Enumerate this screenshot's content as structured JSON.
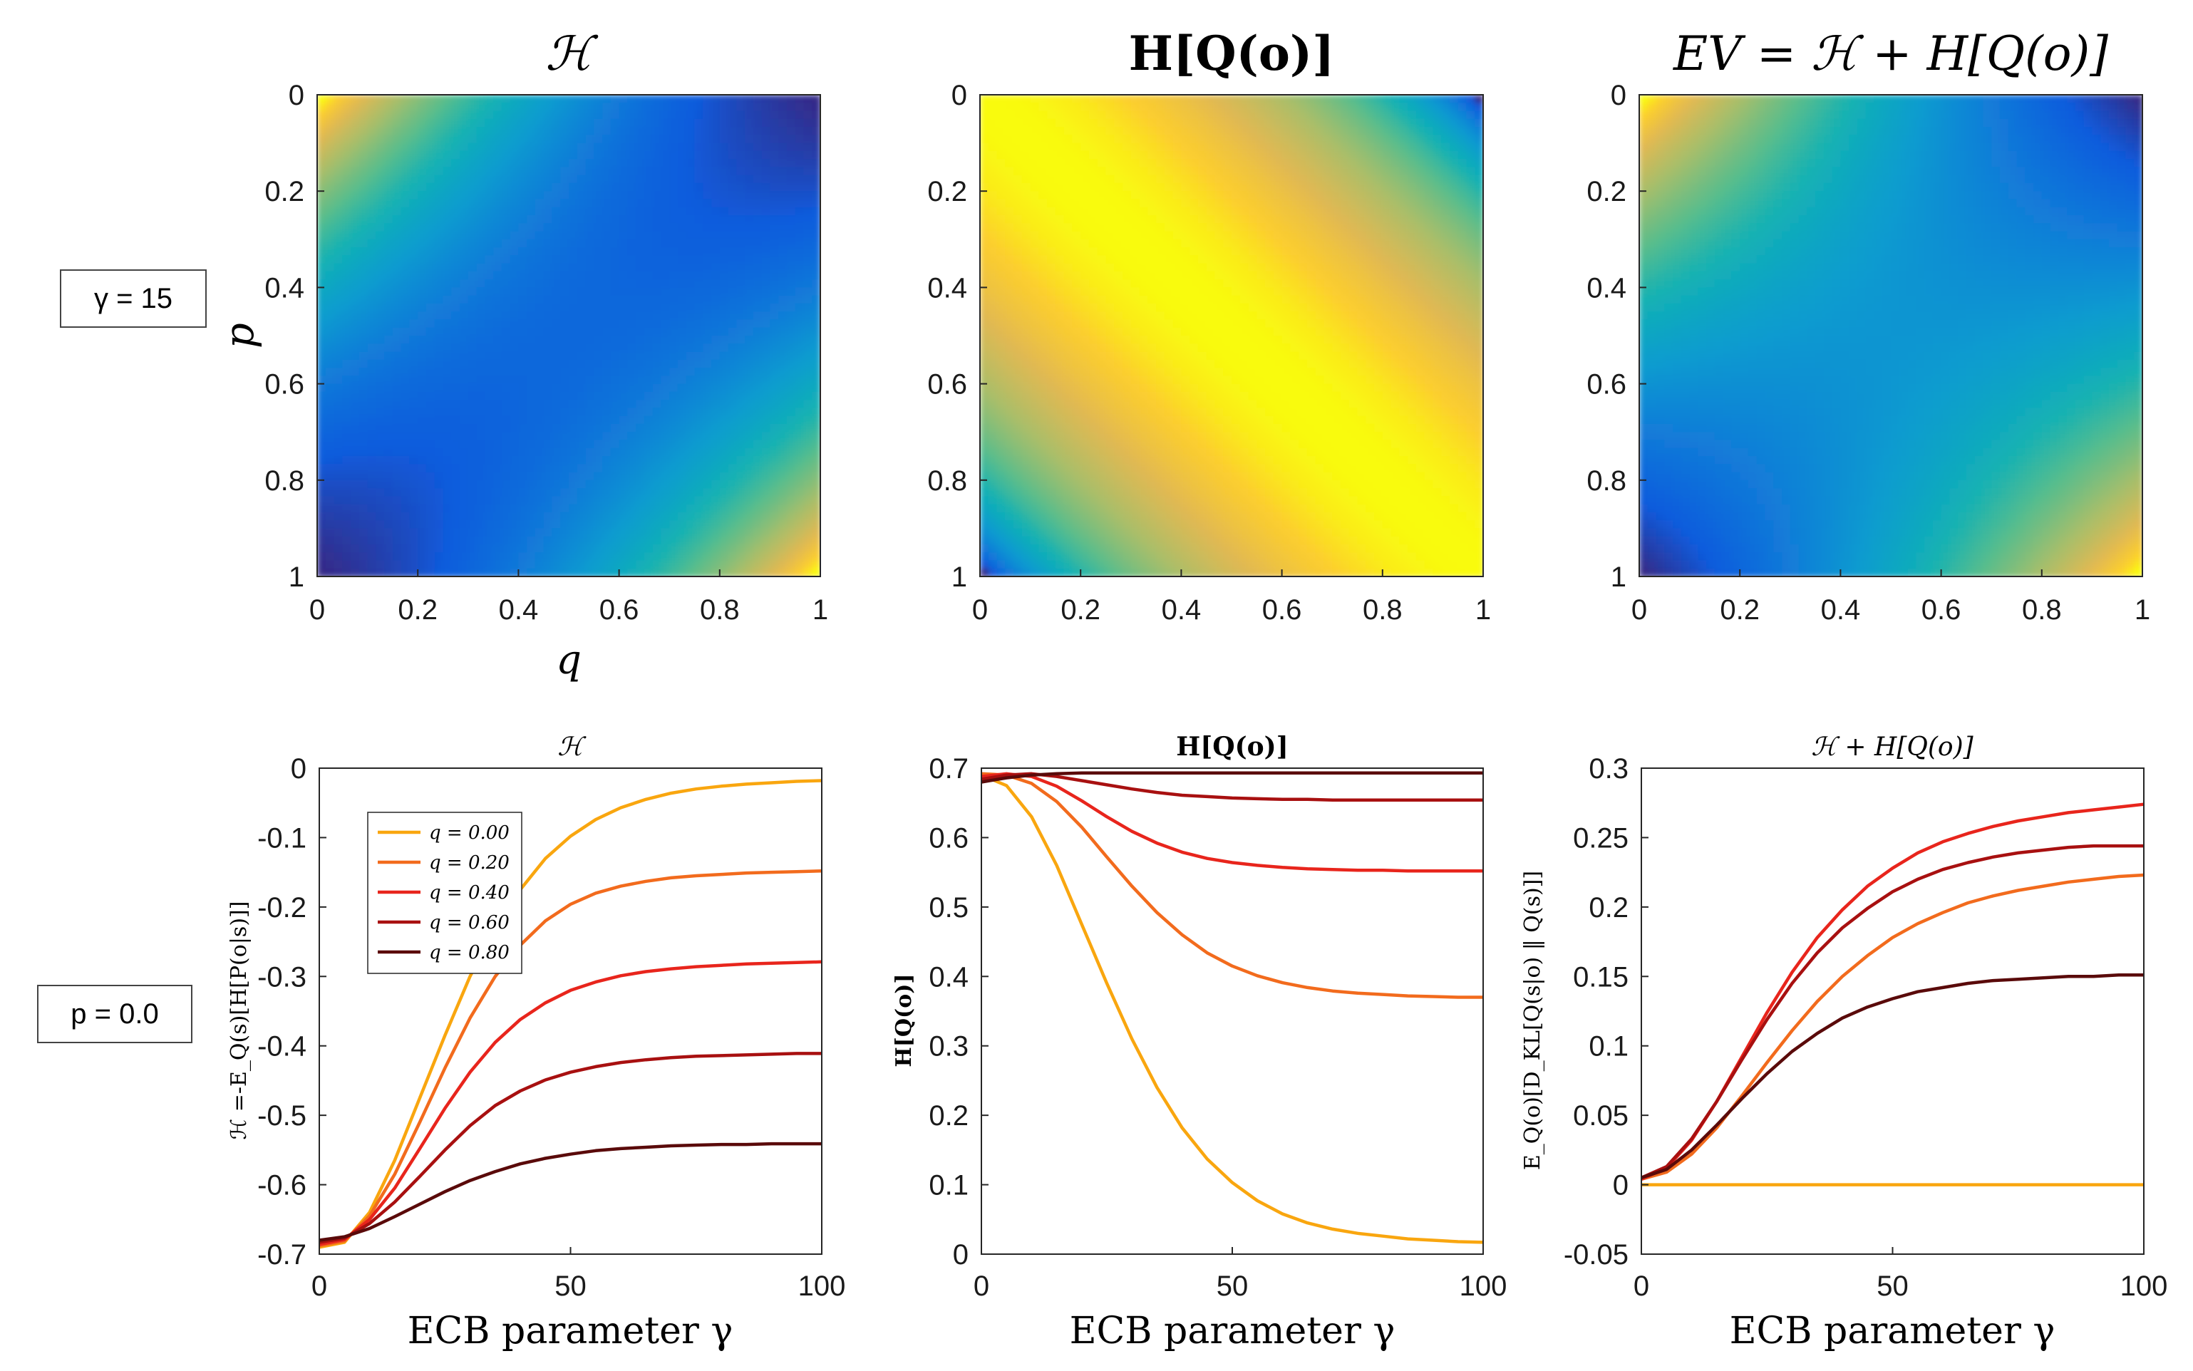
{
  "annotations": {
    "gamma_box": "γ = 15",
    "p_box": "p = 0.0"
  },
  "colors": {
    "q000": "#F9A60F",
    "q020": "#F26B1D",
    "q040": "#E8251C",
    "q060": "#A81010",
    "q080": "#5A0A0A"
  },
  "chart_data": [
    {
      "type": "heatmap",
      "title": "ℋ",
      "xlabel": "q",
      "ylabel": "p",
      "x_ticks": [
        "0",
        "0.2",
        "0.4",
        "0.6",
        "0.8",
        "1"
      ],
      "y_ticks": [
        "0",
        "0.2",
        "0.4",
        "0.6",
        "0.8",
        "1"
      ],
      "xlim": [
        0,
        1
      ],
      "ylim": [
        0,
        1
      ],
      "colormap": "parula",
      "description_values": {
        "high_corners": [
          "p=0,q=0",
          "p=1,q=1"
        ],
        "low_corners": [
          "p=0,q=1",
          "p=1,q=0"
        ]
      }
    },
    {
      "type": "heatmap",
      "title": "H[Q(o)]",
      "xlabel": "",
      "ylabel": "",
      "x_ticks": [
        "0",
        "0.2",
        "0.4",
        "0.6",
        "0.8",
        "1"
      ],
      "y_ticks": [
        "0",
        "0.2",
        "0.4",
        "0.6",
        "0.8",
        "1"
      ],
      "xlim": [
        0,
        1
      ],
      "ylim": [
        0,
        1
      ],
      "colormap": "parula"
    },
    {
      "type": "heatmap",
      "title": "EV = ℋ + H[Q(o)]",
      "xlabel": "",
      "ylabel": "",
      "x_ticks": [
        "0",
        "0.2",
        "0.4",
        "0.6",
        "0.8",
        "1"
      ],
      "y_ticks": [
        "0",
        "0.2",
        "0.4",
        "0.6",
        "0.8",
        "1"
      ],
      "xlim": [
        0,
        1
      ],
      "ylim": [
        0,
        1
      ],
      "colormap": "parula"
    },
    {
      "type": "line",
      "title": "ℋ",
      "xlabel": "ECB parameter γ",
      "ylabel": "ℋ =-E_Q(s)[H[P(o|s)]]",
      "xlim": [
        0,
        100
      ],
      "ylim": [
        -0.7,
        0
      ],
      "x_ticks": [
        "0",
        "50",
        "100"
      ],
      "y_ticks": [
        "0",
        "-0.1",
        "-0.2",
        "-0.3",
        "-0.4",
        "-0.5",
        "-0.6",
        "-0.7"
      ],
      "x": [
        0,
        5,
        10,
        15,
        20,
        25,
        30,
        35,
        40,
        45,
        50,
        55,
        60,
        65,
        70,
        75,
        80,
        85,
        90,
        95,
        100
      ],
      "legend": [
        "q = 0.00",
        "q = 0.20",
        "q = 0.40",
        "q = 0.60",
        "q = 0.80"
      ],
      "series": [
        {
          "name": "q = 0.00",
          "color_key": "q000",
          "values": [
            -0.69,
            -0.683,
            -0.64,
            -0.565,
            -0.475,
            -0.385,
            -0.3,
            -0.23,
            -0.175,
            -0.13,
            -0.098,
            -0.074,
            -0.057,
            -0.045,
            -0.036,
            -0.03,
            -0.026,
            -0.023,
            -0.021,
            -0.019,
            -0.018
          ]
        },
        {
          "name": "q = 0.20",
          "color_key": "q020",
          "values": [
            -0.688,
            -0.681,
            -0.645,
            -0.585,
            -0.51,
            -0.432,
            -0.36,
            -0.3,
            -0.255,
            -0.22,
            -0.196,
            -0.18,
            -0.17,
            -0.163,
            -0.158,
            -0.155,
            -0.153,
            -0.151,
            -0.15,
            -0.149,
            -0.148
          ]
        },
        {
          "name": "q = 0.40",
          "color_key": "q040",
          "values": [
            -0.686,
            -0.679,
            -0.65,
            -0.605,
            -0.548,
            -0.49,
            -0.438,
            -0.395,
            -0.362,
            -0.338,
            -0.32,
            -0.308,
            -0.299,
            -0.293,
            -0.289,
            -0.286,
            -0.284,
            -0.282,
            -0.281,
            -0.28,
            -0.279
          ]
        },
        {
          "name": "q = 0.60",
          "color_key": "q060",
          "values": [
            -0.683,
            -0.677,
            -0.656,
            -0.625,
            -0.588,
            -0.55,
            -0.515,
            -0.486,
            -0.465,
            -0.449,
            -0.438,
            -0.43,
            -0.424,
            -0.42,
            -0.417,
            -0.415,
            -0.414,
            -0.413,
            -0.412,
            -0.411,
            -0.411
          ]
        },
        {
          "name": "q = 0.80",
          "color_key": "q080",
          "values": [
            -0.68,
            -0.675,
            -0.663,
            -0.646,
            -0.628,
            -0.61,
            -0.594,
            -0.581,
            -0.57,
            -0.562,
            -0.556,
            -0.551,
            -0.548,
            -0.546,
            -0.544,
            -0.543,
            -0.542,
            -0.542,
            -0.541,
            -0.541,
            -0.541
          ]
        }
      ]
    },
    {
      "type": "line",
      "title": "H[Q(o)]",
      "xlabel": "ECB parameter γ",
      "ylabel": "H[Q(o)]",
      "xlim": [
        0,
        100
      ],
      "ylim": [
        0,
        0.7
      ],
      "x_ticks": [
        "0",
        "50",
        "100"
      ],
      "y_ticks": [
        "0",
        "0.1",
        "0.2",
        "0.3",
        "0.4",
        "0.5",
        "0.6",
        "0.7"
      ],
      "x": [
        0,
        5,
        10,
        15,
        20,
        25,
        30,
        35,
        40,
        45,
        50,
        55,
        60,
        65,
        70,
        75,
        80,
        85,
        90,
        95,
        100
      ],
      "series": [
        {
          "name": "q = 0.00",
          "color_key": "q000",
          "values": [
            0.69,
            0.675,
            0.63,
            0.56,
            0.475,
            0.39,
            0.31,
            0.24,
            0.182,
            0.137,
            0.103,
            0.077,
            0.058,
            0.045,
            0.036,
            0.03,
            0.026,
            0.022,
            0.02,
            0.018,
            0.017
          ]
        },
        {
          "name": "q = 0.20",
          "color_key": "q020",
          "values": [
            0.692,
            0.69,
            0.678,
            0.652,
            0.615,
            0.572,
            0.53,
            0.492,
            0.46,
            0.434,
            0.415,
            0.401,
            0.391,
            0.384,
            0.379,
            0.376,
            0.374,
            0.372,
            0.371,
            0.37,
            0.37
          ]
        },
        {
          "name": "q = 0.40",
          "color_key": "q040",
          "values": [
            0.688,
            0.692,
            0.688,
            0.674,
            0.653,
            0.63,
            0.609,
            0.592,
            0.579,
            0.57,
            0.564,
            0.56,
            0.557,
            0.555,
            0.554,
            0.553,
            0.553,
            0.552,
            0.552,
            0.552,
            0.552
          ]
        },
        {
          "name": "q = 0.60",
          "color_key": "q060",
          "values": [
            0.684,
            0.69,
            0.692,
            0.688,
            0.682,
            0.676,
            0.67,
            0.665,
            0.661,
            0.659,
            0.657,
            0.656,
            0.655,
            0.655,
            0.654,
            0.654,
            0.654,
            0.654,
            0.654,
            0.654,
            0.654
          ]
        },
        {
          "name": "q = 0.80",
          "color_key": "q080",
          "values": [
            0.68,
            0.686,
            0.69,
            0.692,
            0.693,
            0.693,
            0.693,
            0.693,
            0.693,
            0.693,
            0.693,
            0.693,
            0.693,
            0.693,
            0.693,
            0.693,
            0.693,
            0.693,
            0.693,
            0.693,
            0.693
          ]
        }
      ]
    },
    {
      "type": "line",
      "title": "ℋ + H[Q(o)]",
      "xlabel": "ECB parameter γ",
      "ylabel": "E_Q(o)[D_KL[Q(s|o) ‖ Q(s)]]",
      "xlim": [
        0,
        100
      ],
      "ylim": [
        -0.05,
        0.3
      ],
      "x_ticks": [
        "0",
        "50",
        "100"
      ],
      "y_ticks": [
        "0.3",
        "0.25",
        "0.2",
        "0.15",
        "0.1",
        "0.05",
        "0",
        "-0.05"
      ],
      "x": [
        0,
        5,
        10,
        15,
        20,
        25,
        30,
        35,
        40,
        45,
        50,
        55,
        60,
        65,
        70,
        75,
        80,
        85,
        90,
        95,
        100
      ],
      "series": [
        {
          "name": "q = 0.00",
          "color_key": "q000",
          "values": [
            0.0,
            0.0,
            0.0,
            0.0,
            0.0,
            0.0,
            0.0,
            0.0,
            0.0,
            0.0,
            0.0,
            0.0,
            0.0,
            0.0,
            0.0,
            0.0,
            0.0,
            0.0,
            0.0,
            0.0,
            0.0
          ]
        },
        {
          "name": "q = 0.20",
          "color_key": "q020",
          "values": [
            0.004,
            0.009,
            0.022,
            0.041,
            0.064,
            0.088,
            0.111,
            0.132,
            0.15,
            0.165,
            0.178,
            0.188,
            0.196,
            0.203,
            0.208,
            0.212,
            0.215,
            0.218,
            0.22,
            0.222,
            0.223
          ]
        },
        {
          "name": "q = 0.40",
          "color_key": "q040",
          "values": [
            0.004,
            0.012,
            0.032,
            0.06,
            0.092,
            0.124,
            0.153,
            0.178,
            0.198,
            0.215,
            0.228,
            0.239,
            0.247,
            0.253,
            0.258,
            0.262,
            0.265,
            0.268,
            0.27,
            0.272,
            0.274
          ]
        },
        {
          "name": "q = 0.60",
          "color_key": "q060",
          "values": [
            0.005,
            0.013,
            0.033,
            0.06,
            0.09,
            0.119,
            0.145,
            0.167,
            0.185,
            0.199,
            0.211,
            0.22,
            0.227,
            0.232,
            0.236,
            0.239,
            0.241,
            0.243,
            0.244,
            0.244,
            0.244
          ]
        },
        {
          "name": "q = 0.80",
          "color_key": "q080",
          "values": [
            0.005,
            0.011,
            0.025,
            0.043,
            0.062,
            0.08,
            0.096,
            0.109,
            0.12,
            0.128,
            0.134,
            0.139,
            0.142,
            0.145,
            0.147,
            0.148,
            0.149,
            0.15,
            0.15,
            0.151,
            0.151
          ]
        }
      ]
    }
  ]
}
